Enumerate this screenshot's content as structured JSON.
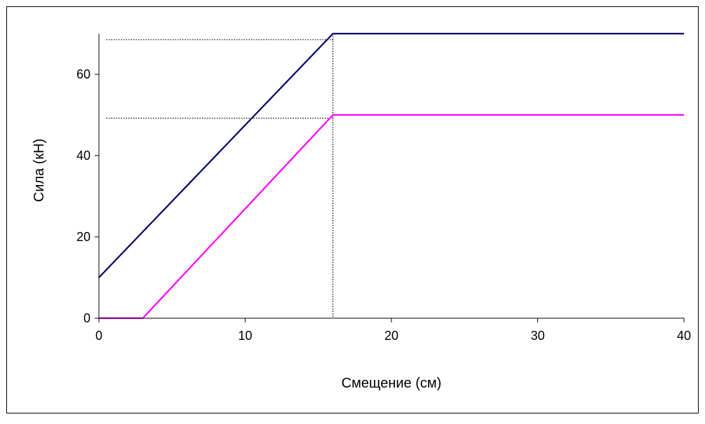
{
  "chart_data": {
    "type": "line",
    "title": "",
    "xlabel": "Смещение (см)",
    "ylabel": "Сила (кН)",
    "xlim": [
      0,
      40
    ],
    "ylim": [
      0,
      70
    ],
    "x_ticks": [
      0,
      10,
      20,
      30,
      40
    ],
    "y_ticks": [
      0,
      20,
      40,
      60
    ],
    "grid": false,
    "legend": "none",
    "series": [
      {
        "color": "#000066",
        "points": [
          [
            0,
            10
          ],
          [
            16,
            70
          ],
          [
            40,
            70
          ]
        ]
      },
      {
        "color": "#ff00ff",
        "points": [
          [
            0,
            0
          ],
          [
            3,
            0
          ],
          [
            16,
            50
          ],
          [
            40,
            50
          ]
        ]
      }
    ],
    "reference_lines": [
      {
        "orientation": "vertical",
        "x": 16,
        "y_from": 0,
        "y_to": 70
      },
      {
        "orientation": "horizontal",
        "y": 68.5,
        "x_from": 0.5,
        "x_to": 16
      },
      {
        "orientation": "horizontal",
        "y": 49.2,
        "x_from": 0.5,
        "x_to": 16
      }
    ]
  }
}
